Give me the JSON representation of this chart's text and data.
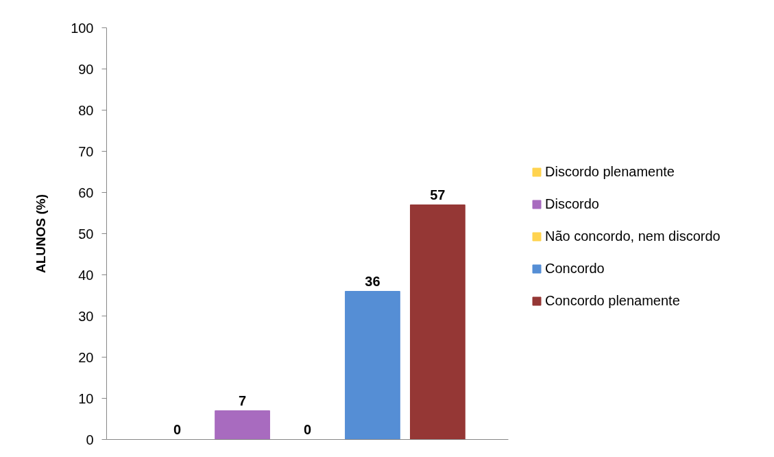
{
  "chart_data": {
    "type": "bar",
    "ylabel": "ALUNOS (%)",
    "categories": [
      null
    ],
    "series": [
      {
        "name": "Discordo plenamente",
        "color": "#ffd34f",
        "values": [
          0
        ]
      },
      {
        "name": "Discordo",
        "color": "#a86bbf",
        "values": [
          7
        ]
      },
      {
        "name": "Não concordo, nem discordo",
        "color": "#ffd34f",
        "values": [
          0
        ]
      },
      {
        "name": "Concordo",
        "color": "#558ed5",
        "values": [
          36
        ]
      },
      {
        "name": "Concordo plenamente",
        "color": "#953735",
        "values": [
          57
        ]
      }
    ],
    "ylim": [
      0,
      100
    ],
    "yticks": [
      0,
      10,
      20,
      30,
      40,
      50,
      60,
      70,
      80,
      90,
      100
    ],
    "data_labels": true,
    "legend": "right"
  }
}
